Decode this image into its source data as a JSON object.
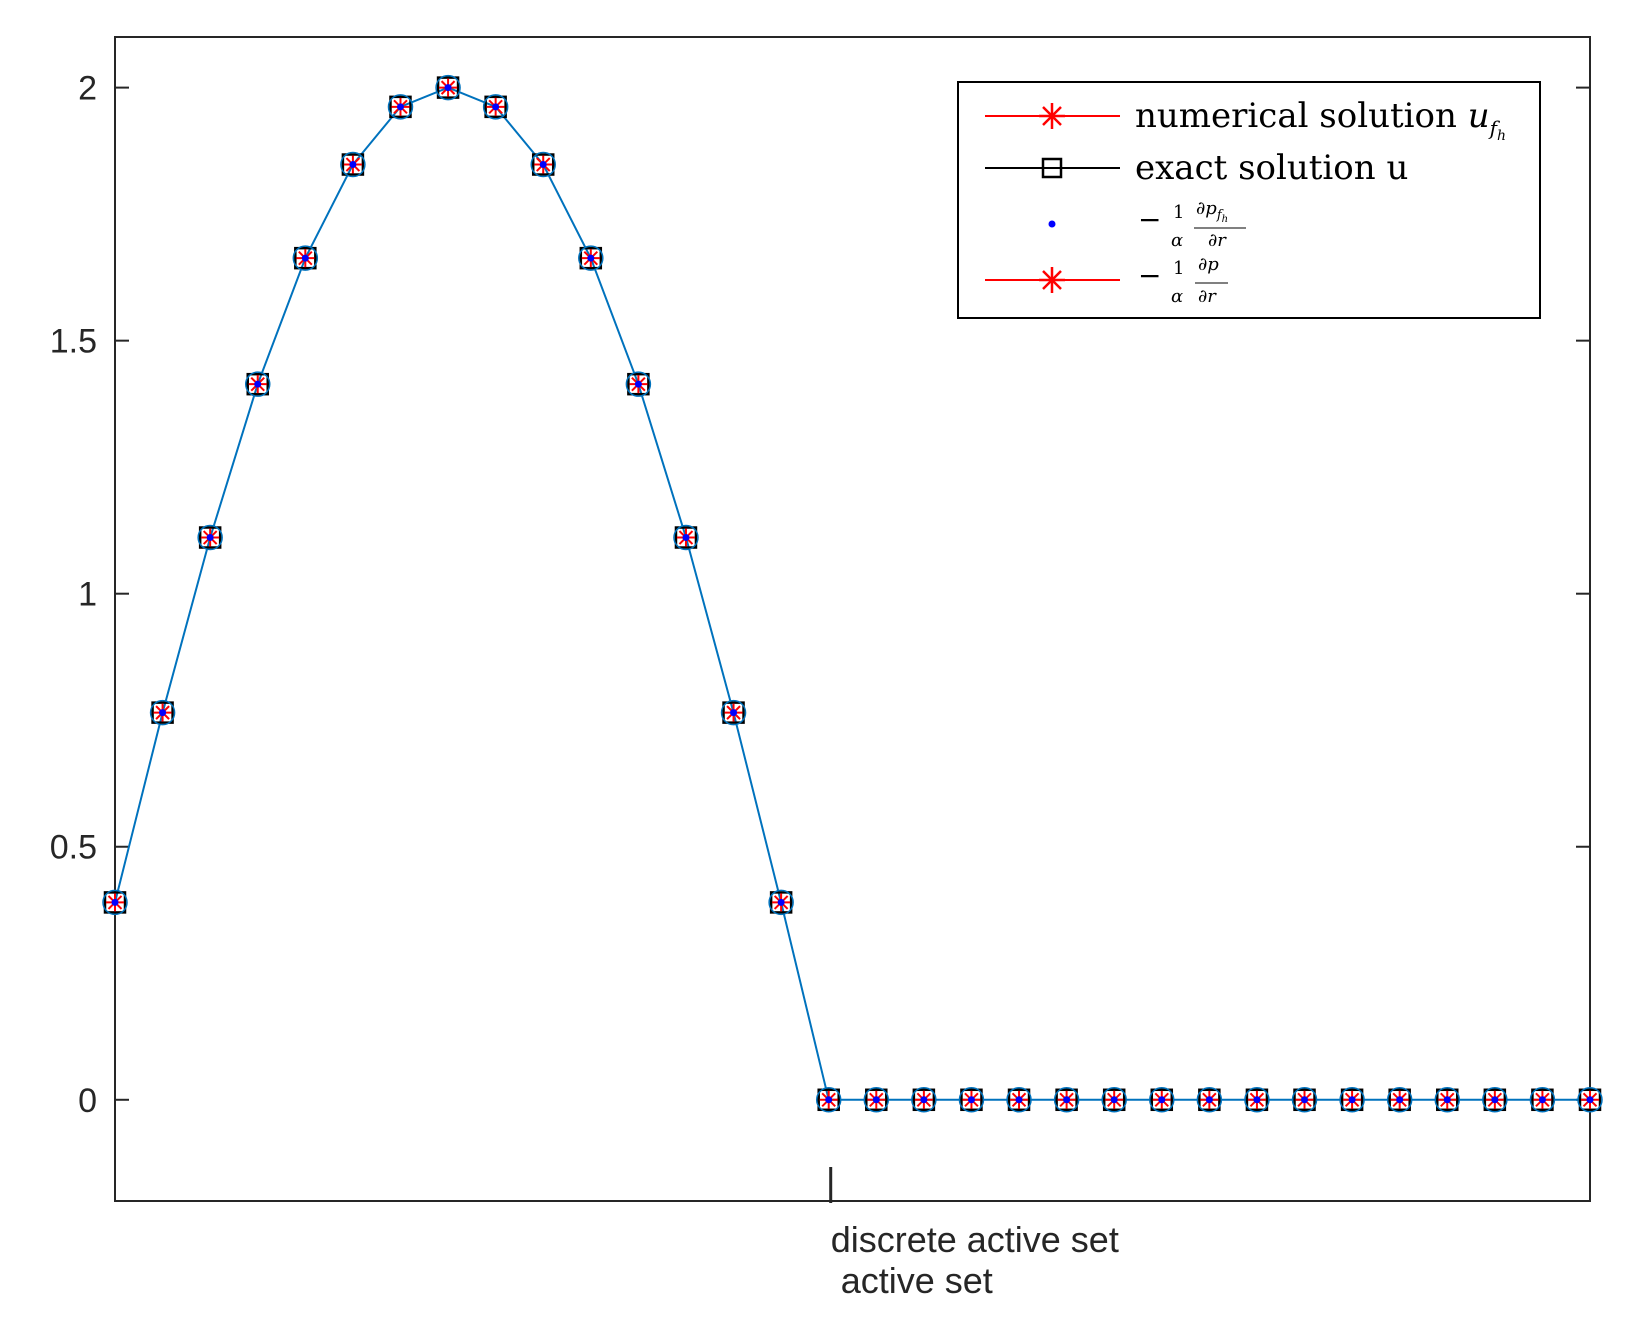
{
  "chart_data": {
    "type": "line",
    "title": "",
    "xlabel": "",
    "ylabel": "",
    "ylim": [
      -0.2,
      2.1
    ],
    "yticks": [
      0,
      0.5,
      1,
      1.5,
      2
    ],
    "ytick_labels": [
      "0",
      "0.5",
      "1",
      "1.5",
      "2"
    ],
    "x": [
      0,
      1,
      2,
      3,
      4,
      5,
      6,
      7,
      8,
      9,
      10,
      11,
      12,
      13,
      14,
      15,
      16,
      17,
      18,
      19,
      20,
      21,
      22,
      23,
      24,
      25,
      26,
      27,
      28,
      29,
      30,
      31
    ],
    "xlim": [
      0,
      31
    ],
    "series": [
      {
        "name": "numerical solution u_{f_h}",
        "color": "#ff0000",
        "marker": "asterisk",
        "values": [
          0.39,
          0.765,
          1.111,
          1.414,
          1.663,
          1.848,
          1.962,
          2.0,
          1.962,
          1.848,
          1.663,
          1.414,
          1.111,
          0.765,
          0.39,
          0,
          0,
          0,
          0,
          0,
          0,
          0,
          0,
          0,
          0,
          0,
          0,
          0,
          0,
          0,
          0,
          0
        ]
      },
      {
        "name": "exact solution u",
        "color": "#000000",
        "marker": "square",
        "values": [
          0.39,
          0.765,
          1.111,
          1.414,
          1.663,
          1.848,
          1.962,
          2.0,
          1.962,
          1.848,
          1.663,
          1.414,
          1.111,
          0.765,
          0.39,
          0,
          0,
          0,
          0,
          0,
          0,
          0,
          0,
          0,
          0,
          0,
          0,
          0,
          0,
          0,
          0,
          0
        ]
      },
      {
        "name": "-1/α ∂p_{f_h}/∂r",
        "color": "#0000ff",
        "marker": "dot",
        "values": [
          0.39,
          0.765,
          1.111,
          1.414,
          1.663,
          1.848,
          1.962,
          2.0,
          1.962,
          1.848,
          1.663,
          1.414,
          1.111,
          0.765,
          0.39,
          0,
          0,
          0,
          0,
          0,
          0,
          0,
          0,
          0,
          0,
          0,
          0,
          0,
          0,
          0,
          0,
          0
        ]
      },
      {
        "name": "-1/α ∂p/∂r",
        "color": "#ff0000",
        "marker": "asterisk",
        "values": [
          0.39,
          0.765,
          1.111,
          1.414,
          1.663,
          1.848,
          1.962,
          2.0,
          1.962,
          1.848,
          1.663,
          1.414,
          1.111,
          0.765,
          0.39,
          0,
          0,
          0,
          0,
          0,
          0,
          0,
          0,
          0,
          0,
          0,
          0,
          0,
          0,
          0,
          0,
          0
        ]
      }
    ],
    "connecting_line_color": "#0072bd",
    "legend_position": "top-right",
    "grid": false,
    "annotation": {
      "x": 15,
      "lines": [
        "discrete active set",
        " active set"
      ]
    }
  },
  "legend": {
    "items": [
      {
        "text": "numerical solution ",
        "math": "u",
        "sub": "f",
        "subsub": "h"
      },
      {
        "text": "exact solution u"
      },
      {
        "text": "−",
        "frac1_num": "1",
        "frac1_den": "α",
        "frac2_num": "∂p",
        "frac2_num_sub": "f",
        "frac2_num_subsub": "h",
        "frac2_den": "∂r"
      },
      {
        "text": "−",
        "frac1_num": "1",
        "frac1_den": "α",
        "frac2_num": "∂p",
        "frac2_den": "∂r"
      }
    ]
  }
}
